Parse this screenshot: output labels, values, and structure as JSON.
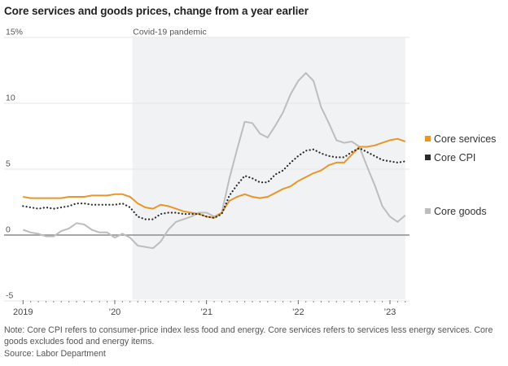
{
  "header": {
    "title": "Core services and goods prices, change from a year earlier"
  },
  "footer": {
    "note": "Note: Core CPI refers to consumer-price index less food and energy. Core services refers to services less energy services. Core goods excludes food and energy items.",
    "source": "Source: Labor Department"
  },
  "colors": {
    "core_services": "#e8962a",
    "core_cpi": "#2b2b2b",
    "core_goods": "#bdbdbd",
    "pandemic_shade": "#f1f2f3",
    "gridline": "#e6e6e6",
    "zero_line": "#8c8c8c"
  },
  "chart_data": {
    "type": "line",
    "title": "Core services and goods prices, change from a year earlier",
    "xlabel": "",
    "ylabel": "",
    "ylim": [
      -5,
      15
    ],
    "y_ticks": [
      15,
      10,
      5,
      0,
      -5
    ],
    "y_tick_labels": [
      "15%",
      "10",
      "5",
      "0",
      "-5"
    ],
    "x_tick_labels": [
      "2019",
      "’20",
      "’21",
      "’22",
      "’23"
    ],
    "x_tick_months": [
      "2019-01",
      "2020-01",
      "2021-01",
      "2022-01",
      "2023-01"
    ],
    "grid": true,
    "legend_position": "right",
    "annotations": [
      {
        "type": "shaded-band",
        "label": "Covid-19 pandemic",
        "start": "2020-03",
        "end": "2023-03"
      }
    ],
    "x": [
      "2019-01",
      "2019-02",
      "2019-03",
      "2019-04",
      "2019-05",
      "2019-06",
      "2019-07",
      "2019-08",
      "2019-09",
      "2019-10",
      "2019-11",
      "2019-12",
      "2020-01",
      "2020-02",
      "2020-03",
      "2020-04",
      "2020-05",
      "2020-06",
      "2020-07",
      "2020-08",
      "2020-09",
      "2020-10",
      "2020-11",
      "2020-12",
      "2021-01",
      "2021-02",
      "2021-03",
      "2021-04",
      "2021-05",
      "2021-06",
      "2021-07",
      "2021-08",
      "2021-09",
      "2021-10",
      "2021-11",
      "2021-12",
      "2022-01",
      "2022-02",
      "2022-03",
      "2022-04",
      "2022-05",
      "2022-06",
      "2022-07",
      "2022-08",
      "2022-09",
      "2022-10",
      "2022-11",
      "2022-12",
      "2023-01",
      "2023-02",
      "2023-03"
    ],
    "series": [
      {
        "name": "Core services",
        "key": "core_services",
        "style": "solid",
        "values": [
          2.9,
          2.8,
          2.8,
          2.8,
          2.8,
          2.8,
          2.9,
          2.9,
          2.9,
          3.0,
          3.0,
          3.0,
          3.1,
          3.1,
          2.9,
          2.4,
          2.1,
          2.0,
          2.3,
          2.2,
          2.0,
          1.8,
          1.7,
          1.6,
          1.4,
          1.3,
          1.7,
          2.6,
          2.9,
          3.1,
          2.9,
          2.8,
          2.9,
          3.2,
          3.5,
          3.7,
          4.1,
          4.4,
          4.7,
          4.9,
          5.3,
          5.5,
          5.5,
          6.1,
          6.7,
          6.7,
          6.8,
          7.0,
          7.2,
          7.3,
          7.1
        ]
      },
      {
        "name": "Core CPI",
        "key": "core_cpi",
        "style": "dotted",
        "values": [
          2.2,
          2.1,
          2.0,
          2.1,
          2.0,
          2.1,
          2.2,
          2.4,
          2.4,
          2.3,
          2.3,
          2.3,
          2.3,
          2.4,
          2.1,
          1.4,
          1.2,
          1.2,
          1.6,
          1.7,
          1.7,
          1.6,
          1.6,
          1.6,
          1.4,
          1.3,
          1.6,
          3.0,
          3.8,
          4.5,
          4.3,
          4.0,
          4.0,
          4.6,
          4.9,
          5.5,
          6.0,
          6.4,
          6.5,
          6.2,
          6.0,
          5.9,
          5.9,
          6.3,
          6.6,
          6.3,
          6.0,
          5.7,
          5.6,
          5.5,
          5.6
        ]
      },
      {
        "name": "Core goods",
        "key": "core_goods",
        "style": "solid",
        "values": [
          0.4,
          0.2,
          0.1,
          -0.1,
          -0.1,
          0.3,
          0.5,
          0.9,
          0.8,
          0.4,
          0.2,
          0.2,
          -0.2,
          0.1,
          -0.2,
          -0.8,
          -0.9,
          -1.0,
          -0.5,
          0.4,
          1.0,
          1.2,
          1.4,
          1.7,
          1.7,
          1.4,
          1.7,
          4.3,
          6.5,
          8.6,
          8.5,
          7.7,
          7.4,
          8.3,
          9.3,
          10.7,
          11.7,
          12.3,
          11.7,
          9.7,
          8.5,
          7.2,
          7.0,
          7.1,
          6.7,
          5.2,
          3.8,
          2.2,
          1.4,
          1.0,
          1.5
        ]
      }
    ]
  }
}
